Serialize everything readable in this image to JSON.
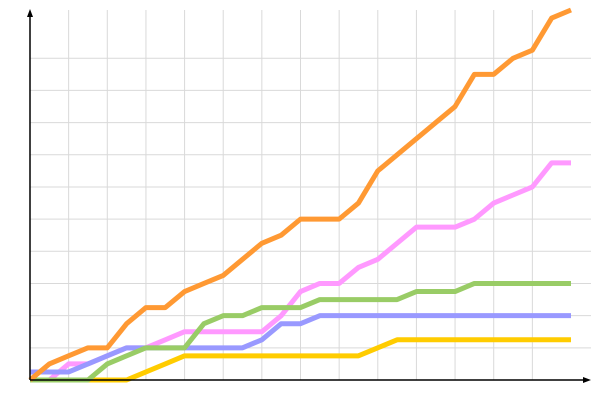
{
  "chart_data": {
    "type": "line",
    "title": "",
    "xlabel": "",
    "ylabel": "",
    "xlim": [
      0,
      14
    ],
    "ylim": [
      0,
      11.5
    ],
    "grid": true,
    "legend": "none",
    "x": [
      0,
      0.5,
      1,
      1.5,
      2,
      2.5,
      3,
      3.5,
      4,
      4.5,
      5,
      5.5,
      6,
      6.5,
      7,
      7.5,
      8,
      8.5,
      9,
      9.5,
      10,
      10.5,
      11,
      11.5,
      12,
      12.5,
      13,
      13.5,
      14
    ],
    "series": [
      {
        "color": "#ffcc00",
        "values": [
          0,
          0,
          0,
          0,
          0,
          0,
          0.25,
          0.5,
          0.75,
          0.75,
          0.75,
          0.75,
          0.75,
          0.75,
          0.75,
          0.75,
          0.75,
          0.75,
          1,
          1.25,
          1.25,
          1.25,
          1.25,
          1.25,
          1.25,
          1.25,
          1.25,
          1.25,
          1.25
        ]
      },
      {
        "color": "#ff99ff",
        "values": [
          0,
          0,
          0.5,
          0.5,
          0.75,
          1,
          1,
          1.25,
          1.5,
          1.5,
          1.5,
          1.5,
          1.5,
          2,
          2.75,
          3,
          3,
          3.5,
          3.75,
          4.25,
          4.75,
          4.75,
          4.75,
          5,
          5.5,
          5.75,
          6,
          6.75,
          6.75
        ]
      },
      {
        "color": "#9999ff",
        "values": [
          0.25,
          0.25,
          0.25,
          0.5,
          0.75,
          1,
          1,
          1,
          1,
          1,
          1,
          1,
          1.25,
          1.75,
          1.75,
          2,
          2,
          2,
          2,
          2,
          2,
          2,
          2,
          2,
          2,
          2,
          2,
          2,
          2
        ]
      },
      {
        "color": "#99cc66",
        "values": [
          0,
          0,
          0,
          0,
          0.5,
          0.75,
          1,
          1,
          1,
          1.75,
          2,
          2,
          2.25,
          2.25,
          2.25,
          2.5,
          2.5,
          2.5,
          2.5,
          2.5,
          2.75,
          2.75,
          2.75,
          3,
          3,
          3,
          3,
          3,
          3
        ]
      },
      {
        "color": "#ff9933",
        "values": [
          0,
          0.5,
          0.75,
          1,
          1,
          1.75,
          2.25,
          2.25,
          2.75,
          3,
          3.25,
          3.75,
          4.25,
          4.5,
          5,
          5,
          5,
          5.5,
          6.5,
          7,
          7.5,
          8,
          8.5,
          9.5,
          9.5,
          10,
          10.25,
          11.25,
          11.5
        ]
      }
    ]
  }
}
